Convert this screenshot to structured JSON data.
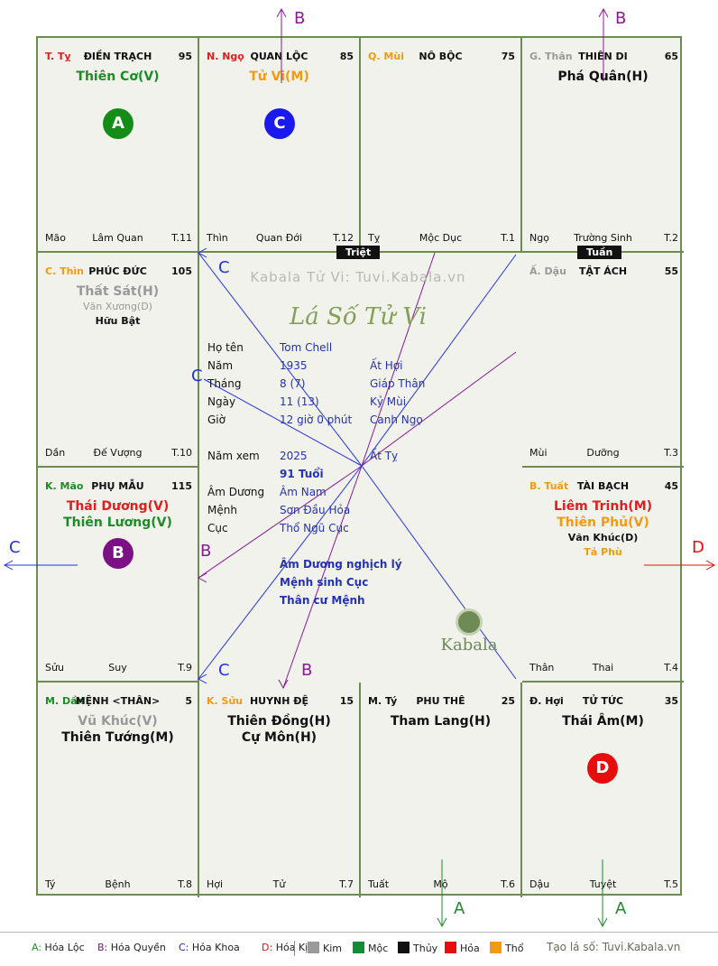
{
  "cells": [
    {
      "id": "ty",
      "pos": [
        0,
        0
      ],
      "branch": "T. Tỵ",
      "branch_color": "#dd1f1f",
      "name": "ĐIỀN TRẠCH",
      "num": "95",
      "stars": [
        {
          "t": "Thiên Cơ(V)",
          "c": "#1f8a28",
          "k": "main"
        }
      ],
      "bl": "Mão",
      "bc": "Lâm Quan",
      "br": "T.11",
      "badge": {
        "l": "A",
        "c": "#138d17"
      }
    },
    {
      "id": "ngo",
      "pos": [
        1,
        0
      ],
      "branch": "N. Ngọ",
      "branch_color": "#dd1f1f",
      "name": "QUAN LỘC",
      "num": "85",
      "stars": [
        {
          "t": "Tử Vi(M)",
          "c": "#f29a11",
          "k": "main"
        }
      ],
      "bl": "Thìn",
      "bc": "Quan Đới",
      "br": "T.12",
      "badge": {
        "l": "C",
        "c": "#1a1aef"
      }
    },
    {
      "id": "mui",
      "pos": [
        2,
        0
      ],
      "branch": "Q. Mùi",
      "branch_color": "#f29a11",
      "name": "NÔ BỘC",
      "num": "75",
      "stars": [],
      "bl": "Tỵ",
      "bc": "Mộc Dục",
      "br": "T.1"
    },
    {
      "id": "than",
      "pos": [
        3,
        0
      ],
      "branch": "G. Thân",
      "branch_color": "#999999",
      "name": "THIÊN DI",
      "num": "65",
      "stars": [
        {
          "t": "Phá Quân(H)",
          "c": "#111111",
          "k": "main"
        }
      ],
      "bl": "Ngọ",
      "bc": "Trường Sinh",
      "br": "T.2"
    },
    {
      "id": "thin",
      "pos": [
        0,
        1
      ],
      "branch": "C. Thìn",
      "branch_color": "#f29a11",
      "name": "PHÚC ĐỨC",
      "num": "105",
      "stars": [
        {
          "t": "Thất Sát(H)",
          "c": "#999999",
          "k": "main"
        },
        {
          "t": " ",
          "c": "#999999",
          "k": "minor"
        },
        {
          "t": "Văn Xương(D)",
          "c": "#999999",
          "k": "minor"
        },
        {
          "t": "Hữu Bật",
          "c": "#111111",
          "k": "minorb"
        }
      ],
      "bl": "Dần",
      "bc": "Đế Vượng",
      "br": "T.10"
    },
    {
      "id": "dau",
      "pos": [
        3,
        1
      ],
      "branch": "Ấ. Dậu",
      "branch_color": "#999999",
      "name": "TẬT ÁCH",
      "num": "55",
      "stars": [],
      "bl": "Mùi",
      "bc": "Dưỡng",
      "br": "T.3"
    },
    {
      "id": "mao",
      "pos": [
        0,
        2
      ],
      "branch": "K. Mão",
      "branch_color": "#1f8a28",
      "name": "PHỤ MẪU",
      "num": "115",
      "stars": [
        {
          "t": "Thái Dương(V)",
          "c": "#dd1f1f",
          "k": "main"
        },
        {
          "t": "Thiên Lương(V)",
          "c": "#1f8a28",
          "k": "main"
        }
      ],
      "bl": "Sửu",
      "bc": "Suy",
      "br": "T.9",
      "badge": {
        "l": "B",
        "c": "#7c1185"
      }
    },
    {
      "id": "tuat",
      "pos": [
        3,
        2
      ],
      "branch": "B. Tuất",
      "branch_color": "#f29a11",
      "name": "TÀI BẠCH",
      "num": "45",
      "stars": [
        {
          "t": "Liêm Trinh(M)",
          "c": "#dd1f1f",
          "k": "main"
        },
        {
          "t": "Thiên Phủ(V)",
          "c": "#f29a11",
          "k": "main"
        },
        {
          "t": " ",
          "c": "#111",
          "k": "minor"
        },
        {
          "t": "Văn Khúc(D)",
          "c": "#111111",
          "k": "minorb"
        },
        {
          "t": "Tả Phù",
          "c": "#f29a11",
          "k": "minorb"
        }
      ],
      "bl": "Thân",
      "bc": "Thai",
      "br": "T.4"
    },
    {
      "id": "dan",
      "pos": [
        0,
        3
      ],
      "branch": "M. Dần",
      "branch_color": "#1f8a28",
      "name": "MỆNH <THÂN>",
      "num": "5",
      "stars": [
        {
          "t": "Vũ Khúc(V)",
          "c": "#999999",
          "k": "main"
        },
        {
          "t": "Thiên Tướng(M)",
          "c": "#111111",
          "k": "main"
        }
      ],
      "bl": "Tý",
      "bc": "Bệnh",
      "br": "T.8"
    },
    {
      "id": "suu",
      "pos": [
        1,
        3
      ],
      "branch": "K. Sửu",
      "branch_color": "#f29a11",
      "name": "HUYNH ĐỆ",
      "num": "15",
      "stars": [
        {
          "t": "Thiên Đồng(H)",
          "c": "#111111",
          "k": "main"
        },
        {
          "t": "Cự Môn(H)",
          "c": "#111111",
          "k": "main"
        }
      ],
      "bl": "Hợi",
      "bc": "Tử",
      "br": "T.7"
    },
    {
      "id": "tyy",
      "pos": [
        2,
        3
      ],
      "branch": "M. Tý",
      "branch_color": "#111111",
      "name": "PHU THÊ",
      "num": "25",
      "stars": [
        {
          "t": "Tham Lang(H)",
          "c": "#111111",
          "k": "main"
        }
      ],
      "bl": "Tuất",
      "bc": "Mộ",
      "br": "T.6"
    },
    {
      "id": "hoi",
      "pos": [
        3,
        3
      ],
      "branch": "Đ. Hợi",
      "branch_color": "#111111",
      "name": "TỬ TỨC",
      "num": "35",
      "stars": [
        {
          "t": "Thái Âm(M)",
          "c": "#111111",
          "k": "main"
        }
      ],
      "bl": "Dậu",
      "bc": "Tuyệt",
      "br": "T.5",
      "badge": {
        "l": "D",
        "c": "#e80d0d"
      }
    }
  ],
  "tags": {
    "triet": "Triệt",
    "tuan": "Tuần"
  },
  "center": {
    "watermark": "Kabala Tử Vi: Tuvi.Kabala.vn",
    "title": "Lá Số Tử Vi",
    "rows": [
      {
        "label": "Họ tên",
        "v1": "Tom Chell",
        "v2": ""
      },
      {
        "label": "Năm",
        "v1": "1935",
        "v2": "Ất Hợi"
      },
      {
        "label": "Tháng",
        "v1": "8  (7)",
        "v2": "Giáp Thân"
      },
      {
        "label": "Ngày",
        "v1": "11  (13)",
        "v2": "Kỷ Mùi"
      },
      {
        "label": "Giờ",
        "v1": "12 giờ 0 phút",
        "v2": "Canh Ngọ"
      }
    ],
    "namxem": {
      "label": "Năm xem",
      "v1": "2025",
      "v2": "Ất Tỵ",
      "age": "91 Tuổi"
    },
    "rows2": [
      {
        "label": "Âm Dương",
        "v1": "Âm Nam"
      },
      {
        "label": "Mệnh",
        "v1": "Sơn Đầu Hỏa"
      },
      {
        "label": "Cục",
        "v1": "Thổ Ngũ Cục"
      }
    ],
    "notes": [
      "Âm Dương nghịch lý",
      "Mệnh sinh Cục",
      "Thân cư Mệnh"
    ],
    "logo": "Kabala"
  },
  "arrow_labels": {
    "a": "A",
    "b": "B",
    "c": "C",
    "d": "D"
  },
  "legend": {
    "hoa": [
      {
        "k": "A:",
        "t": "Hóa Lộc",
        "c": "#1f8a28"
      },
      {
        "k": "B:",
        "t": "Hóa Quyền",
        "c": "#7c1185"
      },
      {
        "k": "C:",
        "t": "Hóa Khoa",
        "c": "#1a1aef"
      },
      {
        "k": "D:",
        "t": "Hóa Kị",
        "c": "#e80d0d"
      }
    ],
    "elements": [
      {
        "t": "Kim",
        "c": "#9a9a9a"
      },
      {
        "t": "Mộc",
        "c": "#138d35"
      },
      {
        "t": "Thủy",
        "c": "#111111"
      },
      {
        "t": "Hỏa",
        "c": "#e80d0d"
      },
      {
        "t": "Thổ",
        "c": "#f29a11"
      }
    ],
    "credit": "Tạo lá số: Tuvi.Kabala.vn"
  }
}
